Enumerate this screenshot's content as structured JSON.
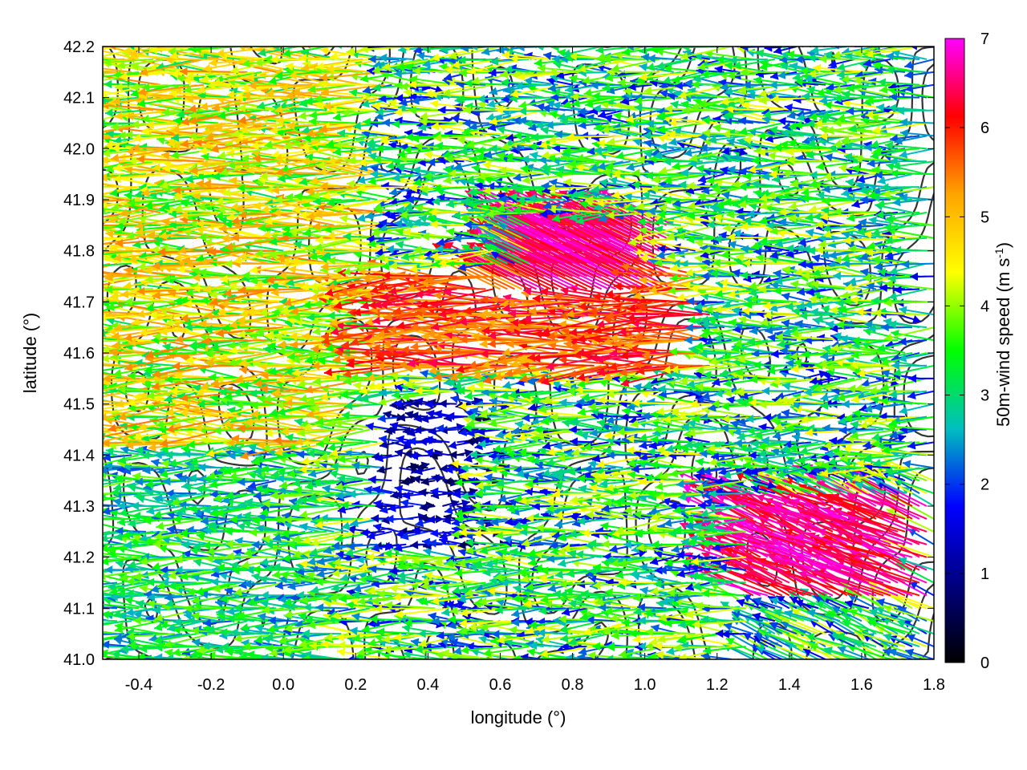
{
  "chart_data": {
    "type": "vector-field",
    "xlabel": "longitude (°)",
    "ylabel": "latitude (°)",
    "colorbar": {
      "label_main": "50m-wind speed (m s",
      "label_sup": "-1",
      "label_close": ")",
      "range": [
        0,
        7
      ],
      "ticks": [
        "0",
        "1",
        "2",
        "3",
        "4",
        "5",
        "6",
        "7"
      ],
      "palette": [
        "#000000",
        "#00007f",
        "#0000ff",
        "#00bfbf",
        "#00ff00",
        "#ffff00",
        "#ffa500",
        "#ff0000",
        "#ff00ff"
      ]
    },
    "xlim": [
      -0.5,
      1.8
    ],
    "ylim": [
      41.0,
      42.2
    ],
    "x_ticks": [
      "-0.4",
      "-0.2",
      "0.0",
      "0.2",
      "0.4",
      "0.6",
      "0.8",
      "1.0",
      "1.2",
      "1.4",
      "1.6",
      "1.8"
    ],
    "y_ticks": [
      "41.0",
      "41.1",
      "41.2",
      "41.3",
      "41.4",
      "41.5",
      "41.6",
      "41.7",
      "41.8",
      "41.9",
      "42.0",
      "42.1",
      "42.2"
    ],
    "grid": true,
    "grid_spacing_deg": 0.05,
    "dominant_direction": "westward (east to west), speeds up to ~7 m/s",
    "wind_speed_regions": [
      {
        "lon": [
          -0.5,
          0.2
        ],
        "lat": [
          41.0,
          41.4
        ],
        "speed": [
          2,
          4
        ]
      },
      {
        "lon": [
          -0.5,
          0.3
        ],
        "lat": [
          41.4,
          42.2
        ],
        "speed": [
          3,
          5.5
        ]
      },
      {
        "lon": [
          0.3,
          0.6
        ],
        "lat": [
          41.2,
          41.5
        ],
        "speed": [
          0.5,
          2
        ]
      },
      {
        "lon": [
          0.3,
          1.2
        ],
        "lat": [
          41.55,
          41.75
        ],
        "speed": [
          5,
          6.5
        ]
      },
      {
        "lon": [
          0.7,
          1.1
        ],
        "lat": [
          41.7,
          41.85
        ],
        "speed": [
          6,
          7
        ]
      },
      {
        "lon": [
          1.3,
          1.8
        ],
        "lat": [
          41.1,
          41.3
        ],
        "speed": [
          6,
          7
        ]
      }
    ]
  }
}
